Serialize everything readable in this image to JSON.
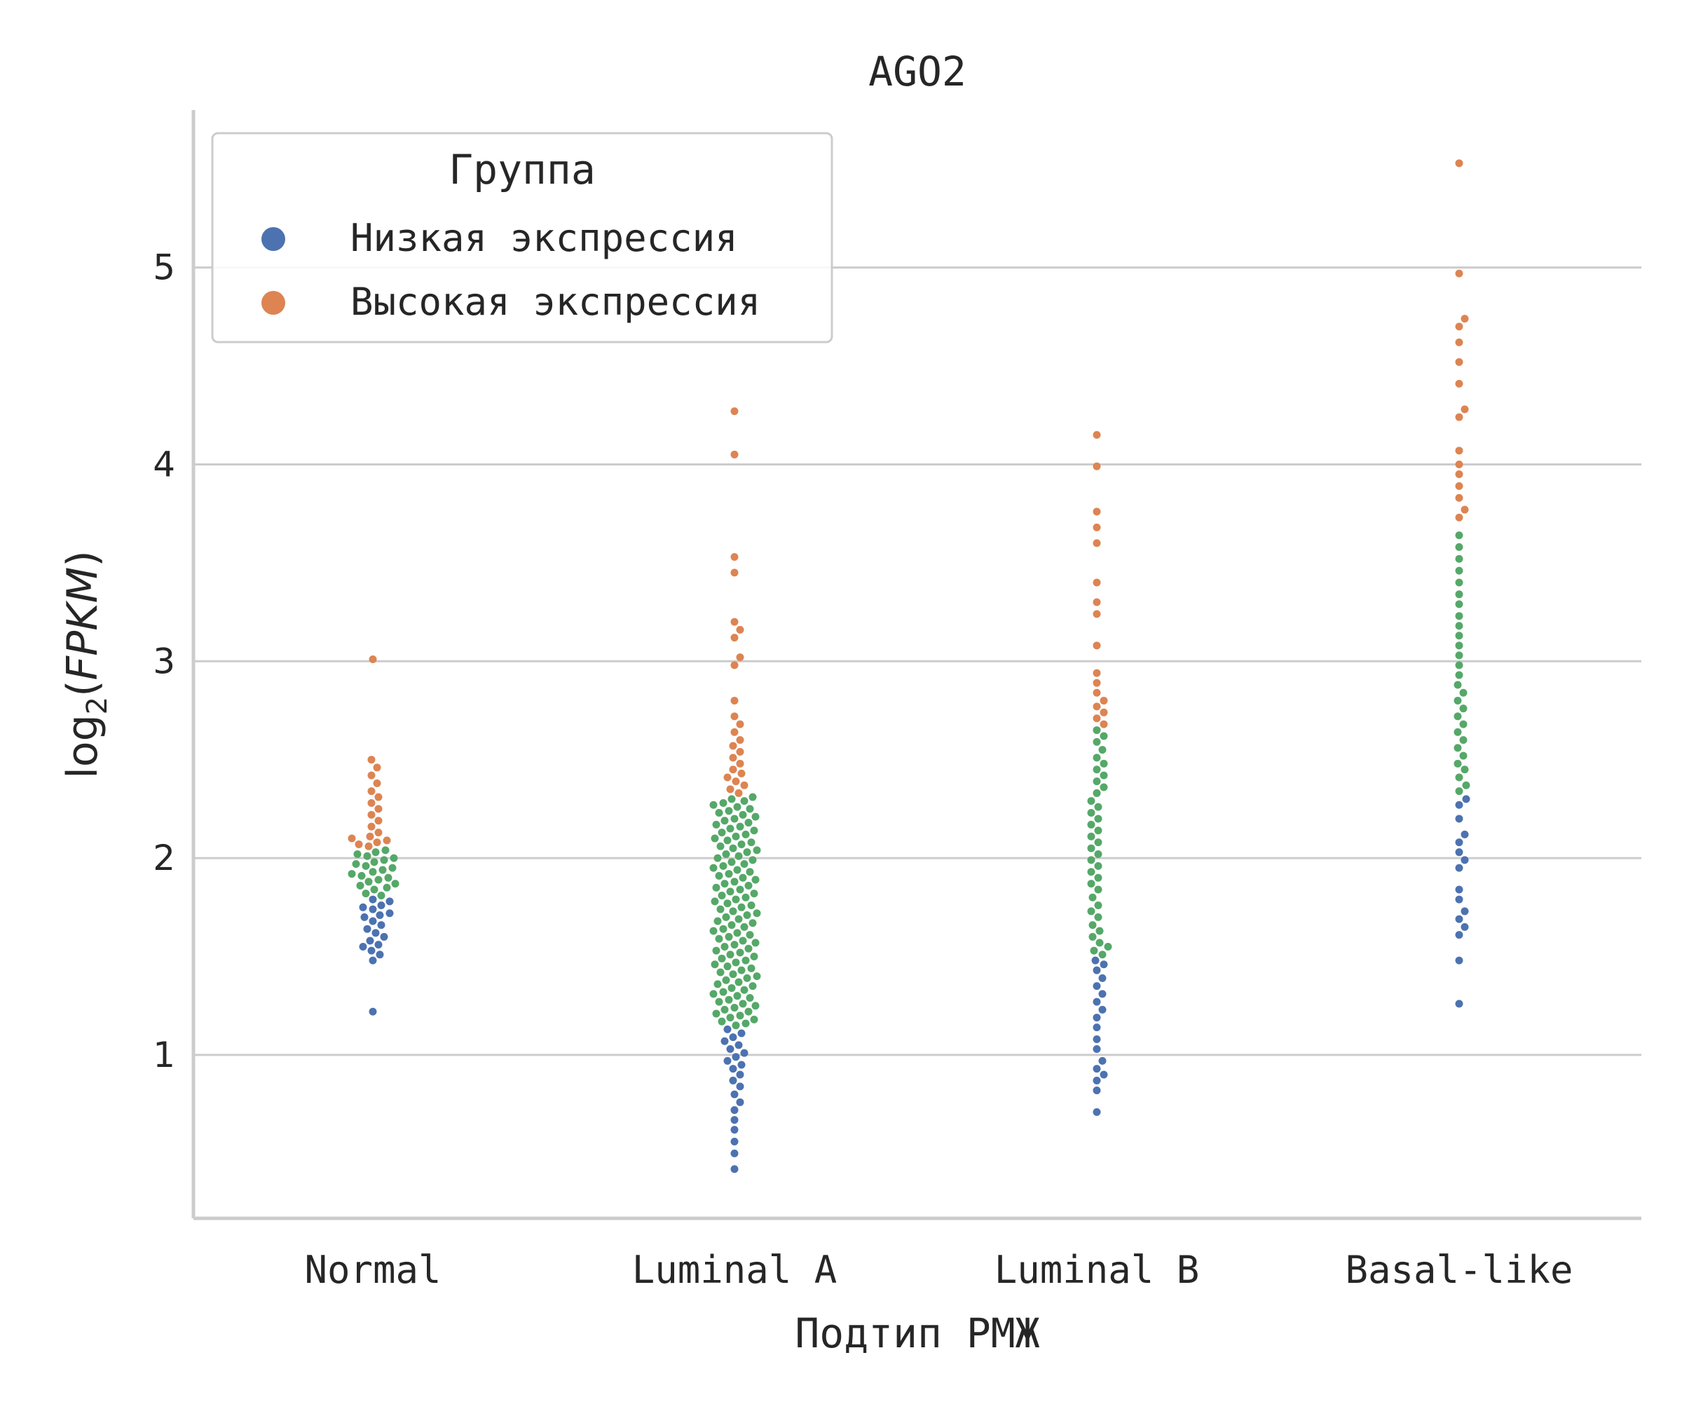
{
  "chart_data": {
    "type": "scatter",
    "title": "AGO2",
    "xlabel": "Подтип РМЖ",
    "ylabel": "log2(FPKM)",
    "ylabel_base": "log",
    "ylabel_sub": "2",
    "ylabel_arg": "FPKM",
    "categories": [
      "Normal",
      "Luminal A",
      "Luminal B",
      "Basal-like"
    ],
    "yticks": [
      1,
      2,
      3,
      4,
      5
    ],
    "ylim": [
      0.17,
      5.8
    ],
    "grid": "horizontal",
    "legend": {
      "title": "Группа",
      "placement": "top-left",
      "entries": [
        {
          "label": "Низкая экспрессия",
          "color": "#4c72b0"
        },
        {
          "label": "Высокая экспрессия",
          "color": "#dd8452"
        }
      ]
    },
    "colors": {
      "low": "#4c72b0",
      "mid": "#55a868",
      "high": "#dd8452",
      "grid": "#cccccc",
      "axis": "#cccccc"
    },
    "series": [
      {
        "category": "Normal",
        "threshold_low": 1.8,
        "threshold_high": 2.05,
        "values": [
          1.22,
          1.48,
          1.51,
          1.53,
          1.55,
          1.56,
          1.58,
          1.6,
          1.62,
          1.64,
          1.66,
          1.68,
          1.7,
          1.71,
          1.72,
          1.74,
          1.75,
          1.76,
          1.78,
          1.79,
          1.81,
          1.82,
          1.84,
          1.85,
          1.86,
          1.87,
          1.88,
          1.89,
          1.9,
          1.91,
          1.92,
          1.93,
          1.94,
          1.95,
          1.96,
          1.97,
          1.98,
          1.99,
          2.0,
          2.01,
          2.02,
          2.03,
          2.04,
          2.06,
          2.07,
          2.08,
          2.09,
          2.1,
          2.11,
          2.13,
          2.16,
          2.19,
          2.22,
          2.25,
          2.28,
          2.31,
          2.34,
          2.38,
          2.42,
          2.46,
          2.5,
          3.01
        ]
      },
      {
        "category": "Luminal A",
        "threshold_low": 1.15,
        "threshold_high": 2.32,
        "values": [
          0.42,
          0.5,
          0.56,
          0.62,
          0.67,
          0.72,
          0.76,
          0.8,
          0.84,
          0.87,
          0.9,
          0.93,
          0.95,
          0.97,
          0.99,
          1.01,
          1.03,
          1.05,
          1.07,
          1.09,
          1.11,
          1.13,
          1.15,
          1.16,
          1.17,
          1.18,
          1.19,
          1.2,
          1.21,
          1.22,
          1.23,
          1.24,
          1.25,
          1.26,
          1.27,
          1.28,
          1.29,
          1.3,
          1.31,
          1.32,
          1.33,
          1.34,
          1.35,
          1.36,
          1.37,
          1.38,
          1.39,
          1.4,
          1.41,
          1.42,
          1.43,
          1.44,
          1.45,
          1.46,
          1.47,
          1.48,
          1.49,
          1.5,
          1.51,
          1.52,
          1.53,
          1.54,
          1.55,
          1.56,
          1.57,
          1.58,
          1.59,
          1.6,
          1.61,
          1.62,
          1.63,
          1.64,
          1.65,
          1.66,
          1.67,
          1.68,
          1.69,
          1.7,
          1.71,
          1.72,
          1.73,
          1.74,
          1.75,
          1.76,
          1.77,
          1.78,
          1.79,
          1.8,
          1.81,
          1.82,
          1.83,
          1.84,
          1.85,
          1.86,
          1.87,
          1.88,
          1.89,
          1.9,
          1.91,
          1.92,
          1.93,
          1.94,
          1.95,
          1.96,
          1.97,
          1.98,
          1.99,
          2.0,
          2.01,
          2.02,
          2.03,
          2.04,
          2.05,
          2.06,
          2.07,
          2.08,
          2.09,
          2.1,
          2.11,
          2.12,
          2.13,
          2.14,
          2.15,
          2.16,
          2.17,
          2.18,
          2.19,
          2.2,
          2.21,
          2.22,
          2.23,
          2.24,
          2.25,
          2.26,
          2.27,
          2.28,
          2.29,
          2.3,
          2.31,
          2.33,
          2.35,
          2.37,
          2.39,
          2.41,
          2.43,
          2.45,
          2.48,
          2.51,
          2.54,
          2.57,
          2.6,
          2.64,
          2.68,
          2.72,
          2.8,
          2.98,
          3.02,
          3.12,
          3.16,
          3.2,
          3.45,
          3.53,
          4.05,
          4.27
        ]
      },
      {
        "category": "Luminal B",
        "threshold_low": 1.5,
        "threshold_high": 2.66,
        "values": [
          0.71,
          0.82,
          0.87,
          0.9,
          0.93,
          0.97,
          1.03,
          1.08,
          1.14,
          1.19,
          1.23,
          1.27,
          1.31,
          1.35,
          1.39,
          1.43,
          1.46,
          1.48,
          1.51,
          1.53,
          1.55,
          1.57,
          1.6,
          1.63,
          1.66,
          1.7,
          1.73,
          1.76,
          1.8,
          1.84,
          1.87,
          1.9,
          1.93,
          1.96,
          1.99,
          2.02,
          2.05,
          2.08,
          2.11,
          2.14,
          2.17,
          2.2,
          2.23,
          2.26,
          2.29,
          2.33,
          2.36,
          2.39,
          2.42,
          2.45,
          2.48,
          2.51,
          2.55,
          2.59,
          2.62,
          2.65,
          2.68,
          2.71,
          2.74,
          2.77,
          2.8,
          2.84,
          2.89,
          2.94,
          3.08,
          3.24,
          3.3,
          3.4,
          3.6,
          3.68,
          3.76,
          3.99,
          4.15
        ]
      },
      {
        "category": "Basal-like",
        "threshold_low": 2.32,
        "threshold_high": 3.7,
        "values": [
          1.26,
          1.48,
          1.61,
          1.65,
          1.69,
          1.73,
          1.79,
          1.84,
          1.95,
          1.99,
          2.03,
          2.08,
          2.12,
          2.2,
          2.27,
          2.3,
          2.34,
          2.37,
          2.41,
          2.45,
          2.48,
          2.52,
          2.56,
          2.6,
          2.64,
          2.68,
          2.72,
          2.76,
          2.8,
          2.84,
          2.88,
          2.93,
          2.98,
          3.03,
          3.08,
          3.13,
          3.18,
          3.23,
          3.29,
          3.34,
          3.4,
          3.46,
          3.52,
          3.58,
          3.64,
          3.73,
          3.77,
          3.83,
          3.89,
          3.95,
          4.0,
          4.07,
          4.24,
          4.28,
          4.41,
          4.52,
          4.62,
          4.7,
          4.74,
          4.97,
          5.53
        ]
      }
    ]
  }
}
